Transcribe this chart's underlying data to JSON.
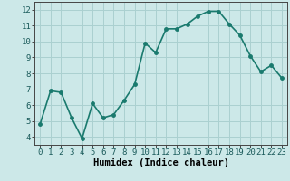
{
  "x": [
    0,
    1,
    2,
    3,
    4,
    5,
    6,
    7,
    8,
    9,
    10,
    11,
    12,
    13,
    14,
    15,
    16,
    17,
    18,
    19,
    20,
    21,
    22,
    23
  ],
  "y": [
    4.8,
    6.9,
    6.8,
    5.2,
    3.9,
    6.1,
    5.2,
    5.4,
    6.3,
    7.3,
    9.9,
    9.3,
    10.8,
    10.8,
    11.1,
    11.6,
    11.9,
    11.9,
    11.1,
    10.4,
    9.1,
    8.1,
    8.5,
    7.7
  ],
  "line_color": "#1a7a6e",
  "bg_color": "#cce8e8",
  "grid_color": "#aad0d0",
  "xlabel": "Humidex (Indice chaleur)",
  "ylim": [
    3.5,
    12.5
  ],
  "xlim": [
    -0.5,
    23.5
  ],
  "yticks": [
    4,
    5,
    6,
    7,
    8,
    9,
    10,
    11,
    12
  ],
  "xticks": [
    0,
    1,
    2,
    3,
    4,
    5,
    6,
    7,
    8,
    9,
    10,
    11,
    12,
    13,
    14,
    15,
    16,
    17,
    18,
    19,
    20,
    21,
    22,
    23
  ],
  "marker_size": 2.5,
  "line_width": 1.2,
  "xlabel_fontsize": 7.5,
  "tick_fontsize": 6.5
}
